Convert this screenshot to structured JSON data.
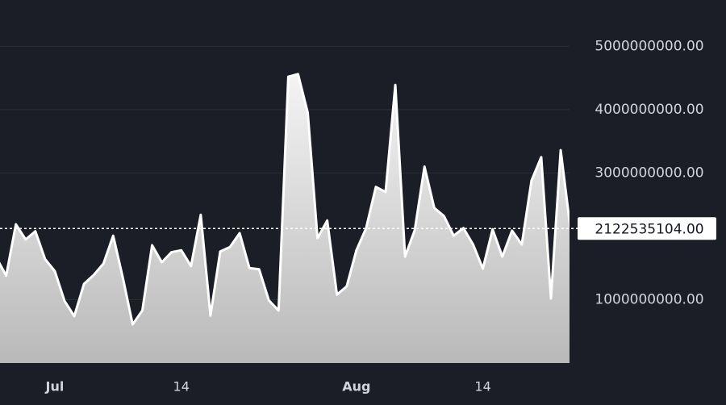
{
  "chart_data": {
    "type": "area",
    "categories": [
      null,
      null,
      null,
      null,
      null,
      null,
      "Jul",
      null,
      null,
      null,
      null,
      null,
      null,
      null,
      null,
      null,
      null,
      null,
      null,
      "14",
      null,
      null,
      null,
      null,
      null,
      null,
      null,
      null,
      null,
      null,
      null,
      null,
      null,
      null,
      null,
      null,
      null,
      "Aug",
      null,
      null,
      null,
      null,
      null,
      null,
      null,
      null,
      null,
      null,
      null,
      null,
      "14",
      null,
      null,
      null,
      null,
      null,
      null,
      null,
      null,
      null
    ],
    "values": [
      1660000000,
      1380000000,
      2190000000,
      1950000000,
      2080000000,
      1640000000,
      1450000000,
      980000000,
      740000000,
      1250000000,
      1390000000,
      1570000000,
      2010000000,
      1340000000,
      610000000,
      830000000,
      1860000000,
      1590000000,
      1750000000,
      1780000000,
      1530000000,
      2340000000,
      750000000,
      1760000000,
      1830000000,
      2050000000,
      1500000000,
      1480000000,
      990000000,
      830000000,
      4520000000,
      4560000000,
      3950000000,
      1970000000,
      2250000000,
      1080000000,
      1210000000,
      1780000000,
      2130000000,
      2780000000,
      2700000000,
      4390000000,
      1680000000,
      2100000000,
      3100000000,
      2450000000,
      2320000000,
      2010000000,
      2130000000,
      1870000000,
      1490000000,
      2110000000,
      1680000000,
      2090000000,
      1870000000,
      2880000000,
      3250000000,
      1020000000,
      3360000000,
      2122535104
    ],
    "last_value_label": "2122535104.00",
    "color": "#ffffff",
    "ylim": [
      0,
      5730000000
    ],
    "yticks": [
      {
        "value": 1000000000,
        "label": "1000000000.00"
      },
      {
        "value": 3000000000,
        "label": "3000000000.00"
      },
      {
        "value": 4000000000,
        "label": "4000000000.00"
      },
      {
        "value": 5000000000,
        "label": "5000000000.00"
      }
    ],
    "grid": true
  }
}
